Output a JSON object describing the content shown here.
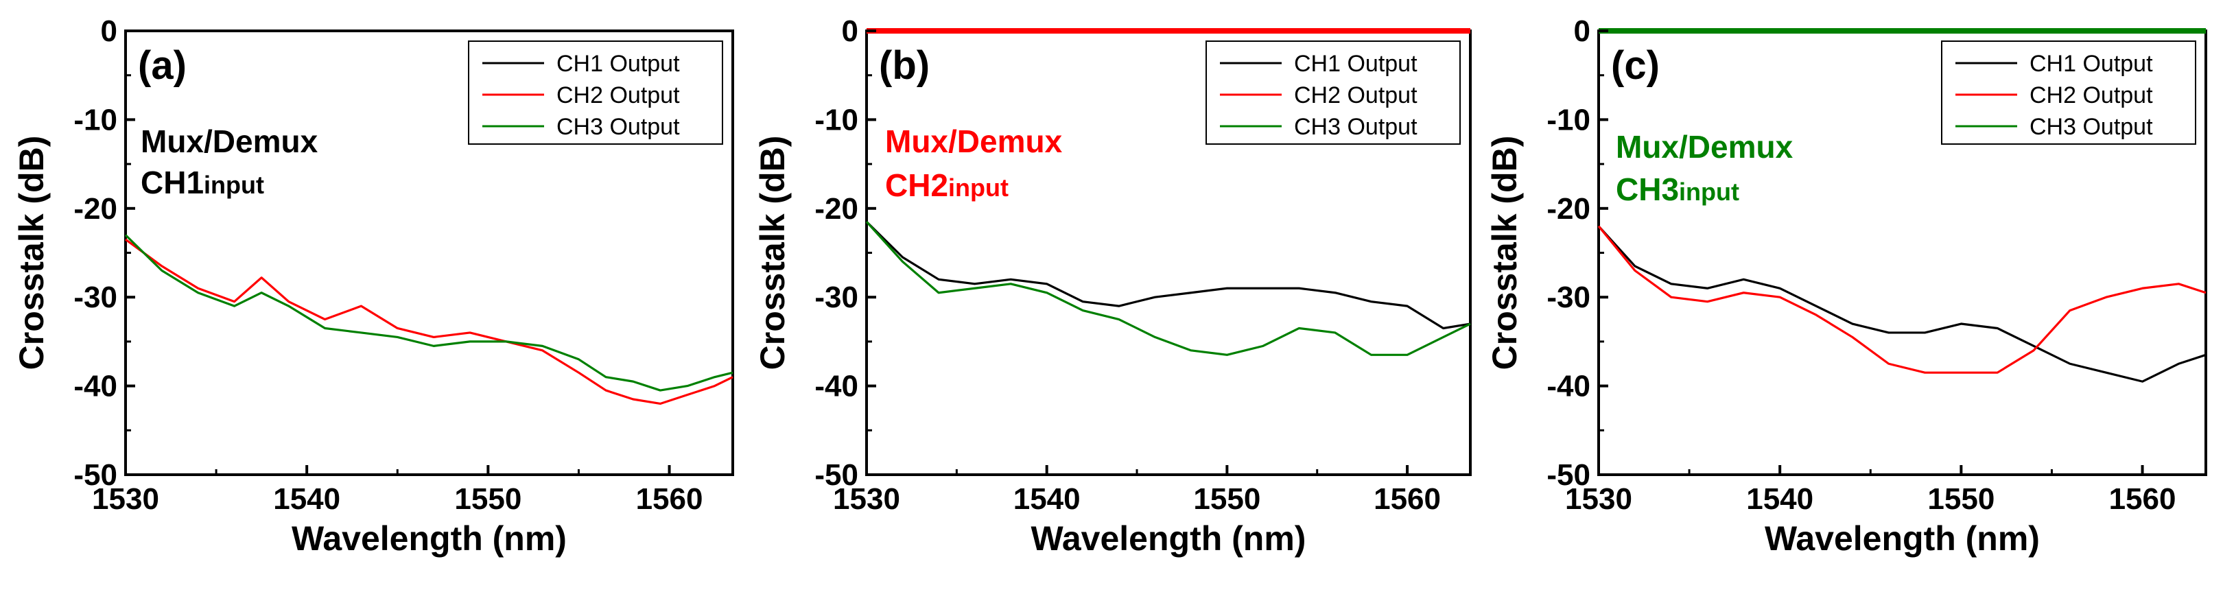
{
  "colors": {
    "ch1": "#000000",
    "ch2": "#ff0000",
    "ch3": "#008000"
  },
  "chart_data": [
    {
      "type": "line",
      "panel_label": "(a)",
      "annotation_line1": "Mux/Demux",
      "annotation_ch": "CH1",
      "annotation_sub": "input",
      "annotation_color": "#000000",
      "top_axis_color": "#000000",
      "xlabel": "Wavelength (nm)",
      "ylabel": "Crosstalk (dB)",
      "xlim": [
        1530,
        1563.5
      ],
      "ylim": [
        -50,
        0
      ],
      "xticks": [
        1530,
        1540,
        1550,
        1560
      ],
      "yticks": [
        0,
        -10,
        -20,
        -30,
        -40,
        -50
      ],
      "x": [
        1530,
        1532,
        1534,
        1536,
        1537.5,
        1539,
        1541,
        1543,
        1545,
        1547,
        1549,
        1551,
        1553,
        1555,
        1556.5,
        1558,
        1559.5,
        1561,
        1562.5,
        1563.5
      ],
      "series": [
        {
          "name": "CH1 Output",
          "color": "#000000",
          "values": null
        },
        {
          "name": "CH2 Output",
          "color": "#ff0000",
          "values": [
            -23.5,
            -26.5,
            -29,
            -30.5,
            -27.8,
            -30.5,
            -32.5,
            -31,
            -33.5,
            -34.5,
            -34,
            -35,
            -36,
            -38.5,
            -40.5,
            -41.5,
            -42,
            -41,
            -40,
            -39
          ]
        },
        {
          "name": "CH3 Output",
          "color": "#008000",
          "values": [
            -23,
            -27,
            -29.5,
            -31,
            -29.5,
            -31,
            -33.5,
            -34,
            -34.5,
            -35.5,
            -35,
            -35,
            -35.5,
            -37,
            -39,
            -39.5,
            -40.5,
            -40,
            -39,
            -38.5
          ]
        }
      ]
    },
    {
      "type": "line",
      "panel_label": "(b)",
      "annotation_line1": "Mux/Demux",
      "annotation_ch": "CH2",
      "annotation_sub": "input",
      "annotation_color": "#ff0000",
      "top_axis_color": "#ff0000",
      "xlabel": "Wavelength (nm)",
      "ylabel": "Crosstalk (dB)",
      "xlim": [
        1530,
        1563.5
      ],
      "ylim": [
        -50,
        0
      ],
      "xticks": [
        1530,
        1540,
        1550,
        1560
      ],
      "yticks": [
        0,
        -10,
        -20,
        -30,
        -40,
        -50
      ],
      "x": [
        1530,
        1532,
        1534,
        1536,
        1538,
        1540,
        1542,
        1544,
        1546,
        1548,
        1550,
        1552,
        1554,
        1556,
        1558,
        1560,
        1562,
        1563.5
      ],
      "series": [
        {
          "name": "CH1 Output",
          "color": "#000000",
          "values": [
            -21.5,
            -25.5,
            -28,
            -28.5,
            -28,
            -28.5,
            -30.5,
            -31,
            -30,
            -29.5,
            -29,
            -29,
            -29,
            -29.5,
            -30.5,
            -31,
            -33.5,
            -33
          ]
        },
        {
          "name": "CH2 Output",
          "color": "#ff0000",
          "values": null
        },
        {
          "name": "CH3 Output",
          "color": "#008000",
          "values": [
            -21.5,
            -26,
            -29.5,
            -29,
            -28.5,
            -29.5,
            -31.5,
            -32.5,
            -34.5,
            -36,
            -36.5,
            -35.5,
            -33.5,
            -34,
            -36.5,
            -36.5,
            -34.5,
            -33
          ]
        }
      ]
    },
    {
      "type": "line",
      "panel_label": "(c)",
      "annotation_line1": "Mux/Demux",
      "annotation_ch": "CH3",
      "annotation_sub": "input",
      "annotation_color": "#008000",
      "top_axis_color": "#008000",
      "xlabel": "Wavelength (nm)",
      "ylabel": "Crosstalk (dB)",
      "xlim": [
        1530,
        1563.5
      ],
      "ylim": [
        -50,
        0
      ],
      "xticks": [
        1530,
        1540,
        1550,
        1560
      ],
      "yticks": [
        0,
        -10,
        -20,
        -30,
        -40,
        -50
      ],
      "x": [
        1530,
        1532,
        1534,
        1536,
        1538,
        1540,
        1542,
        1544,
        1546,
        1548,
        1550,
        1552,
        1554,
        1556,
        1558,
        1560,
        1562,
        1563.5
      ],
      "series": [
        {
          "name": "CH1 Output",
          "color": "#000000",
          "values": [
            -22,
            -26.5,
            -28.5,
            -29,
            -28,
            -29,
            -31,
            -33,
            -34,
            -34,
            -33,
            -33.5,
            -35.5,
            -37.5,
            -38.5,
            -39.5,
            -37.5,
            -36.5
          ]
        },
        {
          "name": "CH2 Output",
          "color": "#ff0000",
          "values": [
            -22,
            -27,
            -30,
            -30.5,
            -29.5,
            -30,
            -32,
            -34.5,
            -37.5,
            -38.5,
            -38.5,
            -38.5,
            -36,
            -31.5,
            -30,
            -29,
            -28.5,
            -29.5
          ]
        },
        {
          "name": "CH3 Output",
          "color": "#008000",
          "values": null
        }
      ]
    }
  ]
}
